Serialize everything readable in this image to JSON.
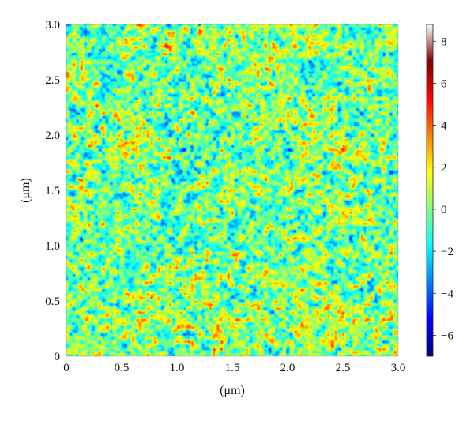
{
  "chart_data": {
    "type": "heatmap",
    "title": "",
    "xlabel": "(μm)",
    "ylabel": "(μm)",
    "xlim": [
      0,
      3.0
    ],
    "ylim": [
      0,
      3.0
    ],
    "x_ticks": [
      "0",
      "0.5",
      "1.0",
      "1.5",
      "2.0",
      "2.5",
      "3.0"
    ],
    "y_ticks": [
      "0",
      "0.5",
      "1.0",
      "1.5",
      "2.0",
      "2.5",
      "3.0"
    ],
    "colorbar": {
      "range": [
        -7,
        8.8
      ],
      "ticks": [
        "8",
        "6",
        "4",
        "2",
        "0",
        "−2",
        "−4",
        "−6"
      ],
      "tick_values": [
        8,
        6,
        4,
        2,
        0,
        -2,
        -4,
        -6
      ],
      "colormap": "jet"
    },
    "surface": {
      "description_values": "height map, mostly between -2 and 2, mean ~0",
      "typical_min": -3.5,
      "typical_max": 3.5
    },
    "colors": {
      "jet_stops": [
        "#00007f",
        "#0000ff",
        "#007fff",
        "#00ffff",
        "#7fff7f",
        "#ffff00",
        "#ff7f00",
        "#ff0000",
        "#7f0000",
        "#ffffff"
      ]
    }
  }
}
